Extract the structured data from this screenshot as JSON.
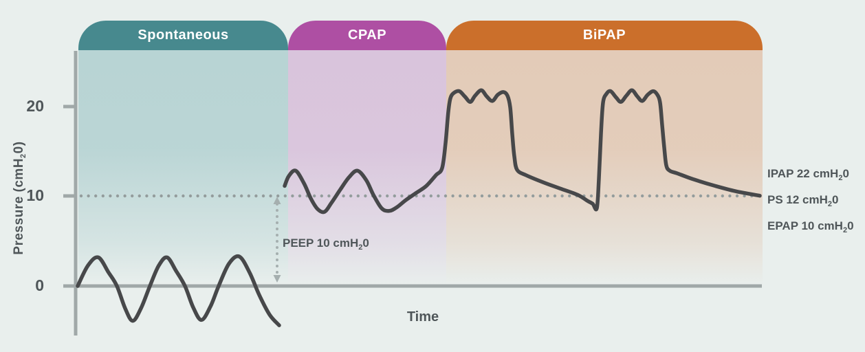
{
  "tabs": [
    {
      "label": "Spontaneous",
      "color": "#47898e",
      "region_color": "#b8d4d4"
    },
    {
      "label": "CPAP",
      "color": "#ae4fa3",
      "region_color": "#d9c4dc"
    },
    {
      "label": "BiPAP",
      "color": "#cb6f2b",
      "region_color": "#e3cbb8"
    }
  ],
  "axes": {
    "y_label": {
      "pre": "Pressure (cmH",
      "sub": "2",
      "post": "0)"
    },
    "x_label": "Time",
    "y_ticks": [
      {
        "label": "20",
        "value": 20
      },
      {
        "label": "10",
        "value": 10
      },
      {
        "label": "0",
        "value": 0
      }
    ]
  },
  "annotations": {
    "peep": {
      "pre": "PEEP 10 cmH",
      "sub": "2",
      "post": "0"
    },
    "ipap": {
      "pre": "IPAP 22 cmH",
      "sub": "2",
      "post": "0"
    },
    "ps": {
      "pre": "PS 12 cmH",
      "sub": "2",
      "post": "0"
    },
    "epap": {
      "pre": "EPAP 10 cmH",
      "sub": "2",
      "post": "0"
    }
  },
  "colors": {
    "background": "#e9efed",
    "axis": "#a0a8a8",
    "waveform": "#47484a",
    "reference_dots": "#939c9c",
    "arrow": "#a5afaf",
    "text": "#4f5659",
    "tab_text": "#ffffff"
  },
  "chart_data": {
    "type": "line",
    "title": "",
    "xlabel": "Time",
    "ylabel": "Pressure (cmH20)",
    "ylim": [
      -6,
      26
    ],
    "y_ticks": [
      0,
      10,
      20
    ],
    "grid": false,
    "reference_line": {
      "value": 10,
      "style": "dotted"
    },
    "key_values": {
      "PEEP": 10,
      "IPAP": 22,
      "PS": 12,
      "EPAP": 10
    },
    "sections": [
      "Spontaneous",
      "CPAP",
      "BiPAP"
    ],
    "series": [
      {
        "name": "spontaneous-breathing",
        "points": [
          [
            113,
            0
          ],
          [
            128,
            2.3
          ],
          [
            143,
            3.2
          ],
          [
            158,
            1.5
          ],
          [
            170,
            0
          ],
          [
            182,
            -2.5
          ],
          [
            193,
            -3.9
          ],
          [
            205,
            -2.5
          ],
          [
            218,
            0
          ],
          [
            231,
            2.3
          ],
          [
            243,
            3.2
          ],
          [
            256,
            1.7
          ],
          [
            269,
            0
          ],
          [
            281,
            -2.4
          ],
          [
            293,
            -3.8
          ],
          [
            306,
            -2.3
          ],
          [
            318,
            0
          ],
          [
            333,
            2.5
          ],
          [
            348,
            3.3
          ],
          [
            363,
            1.5
          ],
          [
            377,
            -1.0
          ],
          [
            392,
            -3.2
          ],
          [
            406,
            -4.4
          ]
        ]
      },
      {
        "name": "cpap-bipap-pressure",
        "points": [
          [
            414,
            11.2
          ],
          [
            420,
            12.3
          ],
          [
            430,
            12.9
          ],
          [
            442,
            11.5
          ],
          [
            452,
            9.8
          ],
          [
            462,
            8.6
          ],
          [
            472,
            8.3
          ],
          [
            482,
            9.3
          ],
          [
            495,
            10.8
          ],
          [
            508,
            12.2
          ],
          [
            520,
            12.9
          ],
          [
            533,
            11.8
          ],
          [
            543,
            10.2
          ],
          [
            555,
            8.7
          ],
          [
            566,
            8.4
          ],
          [
            577,
            8.8
          ],
          [
            590,
            9.6
          ],
          [
            605,
            10.4
          ],
          [
            620,
            11.2
          ],
          [
            634,
            12.4
          ],
          [
            643,
            13.2
          ],
          [
            648,
            16.0
          ],
          [
            652,
            19.5
          ],
          [
            655,
            21.0
          ],
          [
            660,
            21.6
          ],
          [
            668,
            21.8
          ],
          [
            676,
            21.2
          ],
          [
            684,
            20.6
          ],
          [
            691,
            21.3
          ],
          [
            700,
            21.9
          ],
          [
            708,
            21.2
          ],
          [
            716,
            20.7
          ],
          [
            724,
            21.4
          ],
          [
            732,
            21.7
          ],
          [
            738,
            21.3
          ],
          [
            742,
            20.0
          ],
          [
            745,
            17.0
          ],
          [
            748,
            14.5
          ],
          [
            752,
            13.0
          ],
          [
            765,
            12.4
          ],
          [
            790,
            11.6
          ],
          [
            815,
            10.9
          ],
          [
            840,
            10.2
          ],
          [
            855,
            9.5
          ],
          [
            862,
            9.2
          ],
          [
            868,
            8.7
          ],
          [
            871,
            12.0
          ],
          [
            874,
            17.0
          ],
          [
            877,
            20.5
          ],
          [
            882,
            21.5
          ],
          [
            888,
            21.8
          ],
          [
            896,
            21.1
          ],
          [
            903,
            20.6
          ],
          [
            911,
            21.3
          ],
          [
            919,
            21.9
          ],
          [
            927,
            21.2
          ],
          [
            934,
            20.7
          ],
          [
            942,
            21.4
          ],
          [
            950,
            21.8
          ],
          [
            956,
            21.4
          ],
          [
            960,
            20.5
          ],
          [
            963,
            18.0
          ],
          [
            966,
            15.5
          ],
          [
            969,
            13.5
          ],
          [
            974,
            12.9
          ],
          [
            985,
            12.6
          ],
          [
            1010,
            11.9
          ],
          [
            1040,
            11.2
          ],
          [
            1070,
            10.6
          ],
          [
            1105,
            10.1
          ]
        ]
      }
    ]
  }
}
